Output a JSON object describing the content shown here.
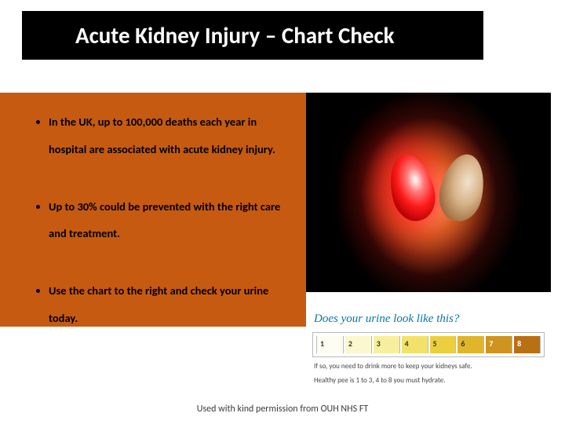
{
  "title": "Acute Kidney Injury – Chart Check",
  "bullets": [
    "In the UK, up to 100,000 deaths each year in hospital are associated with acute kidney injury.",
    "Up to 30% could be prevented with the right care and treatment.",
    "Use the chart to the right and check your urine today."
  ],
  "urine_chart": {
    "heading": "Does your urine look like this?",
    "sub1": "If so, you need to drink more to keep your kidneys safe.",
    "sub2": "Healthy pee is 1 to 3, 4 to 8 you must hydrate.",
    "swatches": [
      {
        "n": "1",
        "c": "#fdfdf2",
        "light": false
      },
      {
        "n": "2",
        "c": "#fbf7cf",
        "light": false
      },
      {
        "n": "3",
        "c": "#f7ef9e",
        "light": false
      },
      {
        "n": "4",
        "c": "#f2e26a",
        "light": false
      },
      {
        "n": "5",
        "c": "#eccf3f",
        "light": false
      },
      {
        "n": "6",
        "c": "#e0b52c",
        "light": false
      },
      {
        "n": "7",
        "c": "#cf941f",
        "light": true
      },
      {
        "n": "8",
        "c": "#b87012",
        "light": true
      }
    ]
  },
  "footer": "Used with kind permission from OUH NHS FT",
  "colors": {
    "orange_block": "#c65a11",
    "title_bg": "#000000",
    "urine_heading": "#0077a8"
  }
}
